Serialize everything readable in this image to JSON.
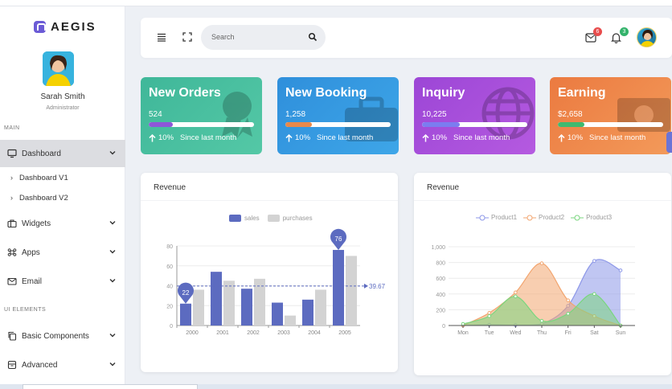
{
  "brand": {
    "name": "AEGIS"
  },
  "profile": {
    "name": "Sarah Smith",
    "role": "Administrator"
  },
  "sidebar": {
    "section_main": "MAIN",
    "dashboard": "Dashboard",
    "sub_items": [
      "Dashboard V1",
      "Dashboard V2"
    ],
    "widgets": "Widgets",
    "apps": "Apps",
    "email": "Email",
    "section_ui": "UI ELEMENTS",
    "basic_components": "Basic Components",
    "advanced": "Advanced"
  },
  "header": {
    "search_placeholder": "Search",
    "mail_badge": "6",
    "bell_badge": "3",
    "mail_badge_color": "#e84c4c",
    "bell_badge_color": "#33b36b"
  },
  "stats": [
    {
      "title": "New Orders",
      "value": "524",
      "progress": 0.23,
      "change": "10%",
      "since": "Since last month",
      "gradient": [
        "#3fb799",
        "#54c8a6"
      ],
      "bar_color": "#8e56d8"
    },
    {
      "title": "New Booking",
      "value": "1,258",
      "progress": 0.25,
      "change": "10%",
      "since": "Since last month",
      "gradient": [
        "#2f8fdb",
        "#3ea6e8"
      ],
      "bar_color": "#e8894a"
    },
    {
      "title": "Inquiry",
      "value": "10,225",
      "progress": 0.36,
      "change": "10%",
      "since": "Since last month",
      "gradient": [
        "#9c46d6",
        "#b55ae0"
      ],
      "bar_color": "#7c7cf0"
    },
    {
      "title": "Earning",
      "value": "$2,658",
      "progress": 0.25,
      "change": "10%",
      "since": "Since last month",
      "gradient": [
        "#eb7a40",
        "#f39a5a"
      ],
      "bar_color": "#3fb96f"
    }
  ],
  "revenue_bar": {
    "title": "Revenue",
    "chart_data": {
      "type": "bar",
      "categories": [
        "2000",
        "2001",
        "2002",
        "2003",
        "2004",
        "2005"
      ],
      "series": [
        {
          "name": "sales",
          "values": [
            22,
            54,
            37,
            23,
            26,
            76
          ],
          "color": "#5c6bc0"
        },
        {
          "name": "purchases",
          "values": [
            36,
            45,
            47,
            10,
            36,
            70
          ],
          "color": "#d3d3d3"
        }
      ],
      "yticks": [
        "0",
        "20",
        "40",
        "60",
        "80"
      ],
      "ylim": [
        0,
        80
      ],
      "markers": [
        {
          "label": "22",
          "category": "2000",
          "value": 22
        },
        {
          "label": "76",
          "category": "2005",
          "value": 76
        }
      ],
      "average_line": {
        "value": 39.67,
        "label": "39.67"
      },
      "legend": "top-center",
      "grid": true
    }
  },
  "revenue_area": {
    "title": "Revenue",
    "chart_data": {
      "type": "area",
      "categories": [
        "Mon",
        "Tue",
        "Wed",
        "Thu",
        "Fri",
        "Sat",
        "Sun"
      ],
      "series": [
        {
          "name": "Product1",
          "values": [
            0,
            10,
            5,
            20,
            250,
            820,
            700
          ],
          "color": "#8c97e8"
        },
        {
          "name": "Product2",
          "values": [
            0,
            160,
            420,
            790,
            320,
            120,
            0
          ],
          "color": "#f2a56f"
        },
        {
          "name": "Product3",
          "values": [
            20,
            120,
            370,
            60,
            150,
            400,
            0
          ],
          "color": "#7ad67f"
        }
      ],
      "yticks": [
        "0",
        "200",
        "400",
        "600",
        "800",
        "1,000"
      ],
      "ylim": [
        0,
        1000
      ],
      "legend": "top-center",
      "grid": true
    }
  }
}
